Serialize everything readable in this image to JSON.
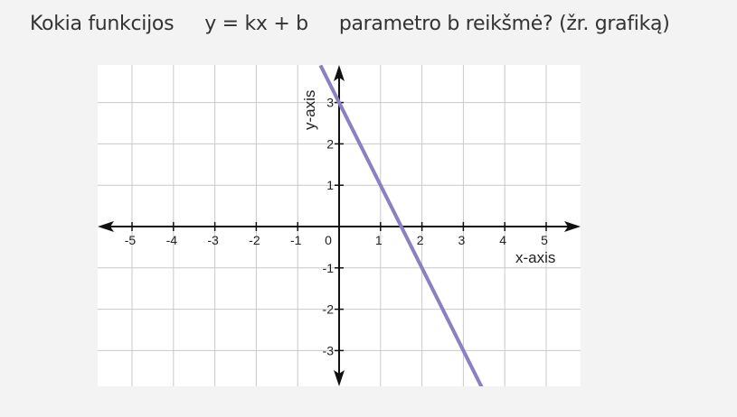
{
  "question": {
    "prefix": "Kokia funkcijos",
    "equation": "y = kx + b",
    "suffix": "parametro b reikšmė? (žr. grafiką)"
  },
  "chart_data": {
    "type": "line",
    "xlabel": "x-axis",
    "ylabel": "y-axis",
    "xlim": [
      -5.5,
      5.9
    ],
    "ylim": [
      -3.9,
      3.9
    ],
    "xticks": [
      -5,
      -4,
      -3,
      -2,
      -1,
      0,
      1,
      2,
      3,
      4,
      5
    ],
    "yticks": [
      -3,
      -2,
      -1,
      1,
      2,
      3
    ],
    "tick_labels_x": [
      "-5",
      "-4",
      "-3",
      "-2",
      "-1",
      "0",
      "1",
      "2",
      "3",
      "4",
      "5"
    ],
    "tick_labels_y": [
      "-3",
      "-2",
      "-1",
      "1",
      "2",
      "3"
    ],
    "grid": true,
    "series": [
      {
        "slope": -2,
        "intercept": 3,
        "x": [
          -0.45,
          3.45
        ],
        "y": [
          3.9,
          -3.9
        ],
        "color": "#8b80c4"
      }
    ]
  }
}
